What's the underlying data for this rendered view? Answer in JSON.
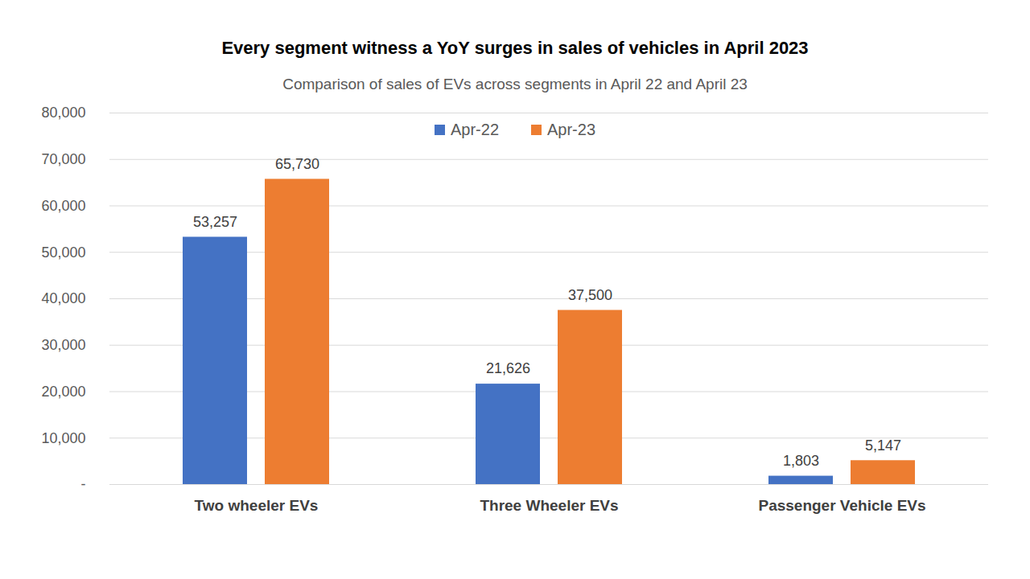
{
  "chart_data": {
    "type": "bar",
    "title": "Every segment witness a YoY surges in sales of vehicles in April 2023",
    "subtitle": "Comparison of sales of EVs across segments in April 22 and April 23",
    "categories": [
      "Two wheeler EVs",
      "Three Wheeler EVs",
      "Passenger Vehicle EVs"
    ],
    "series": [
      {
        "name": "Apr-22",
        "color": "#4472c4",
        "values": [
          53257,
          21626,
          1803
        ],
        "value_labels": [
          "53,257",
          "21,626",
          "1,803"
        ]
      },
      {
        "name": "Apr-23",
        "color": "#ed7d31",
        "values": [
          65730,
          37500,
          5147
        ],
        "value_labels": [
          "65,730",
          "37,500",
          "5,147"
        ]
      }
    ],
    "ylim": [
      0,
      80000
    ],
    "yticks": [
      {
        "value": 0,
        "label": "-"
      },
      {
        "value": 10000,
        "label": "10,000"
      },
      {
        "value": 20000,
        "label": "20,000"
      },
      {
        "value": 30000,
        "label": "30,000"
      },
      {
        "value": 40000,
        "label": "40,000"
      },
      {
        "value": 50000,
        "label": "50,000"
      },
      {
        "value": 60000,
        "label": "60,000"
      },
      {
        "value": 70000,
        "label": "70,000"
      },
      {
        "value": 80000,
        "label": "80,000"
      }
    ],
    "grid": true,
    "legend": "top",
    "data_labels": true
  }
}
